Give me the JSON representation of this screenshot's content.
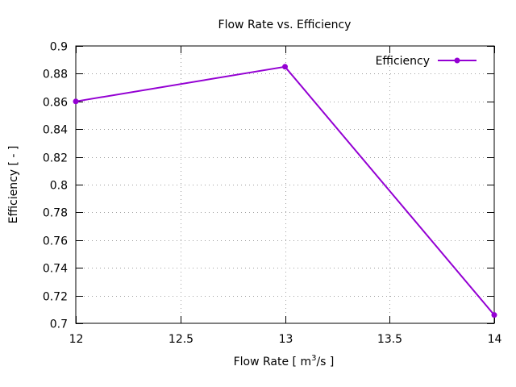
{
  "chart_data": {
    "type": "line",
    "title": "Flow Rate  vs. Efficiency",
    "xlabel_main": "Flow Rate [ m",
    "xlabel_sup": "3",
    "xlabel_tail": "/s ]",
    "ylabel": "Efficiency [ - ]",
    "xlim": [
      12,
      14
    ],
    "ylim": [
      0.7,
      0.9
    ],
    "xticks": [
      12,
      12.5,
      13,
      13.5,
      14
    ],
    "xtick_labels": [
      "12",
      "12.5",
      "13",
      "13.5",
      "14"
    ],
    "yticks": [
      0.7,
      0.72,
      0.74,
      0.76,
      0.78,
      0.8,
      0.82,
      0.84,
      0.86,
      0.88,
      0.9
    ],
    "ytick_labels": [
      "0.7",
      "0.72",
      "0.74",
      "0.76",
      "0.78",
      "0.8",
      "0.82",
      "0.84",
      "0.86",
      "0.88",
      "0.9"
    ],
    "grid": true,
    "legend_position": "top-right",
    "series": [
      {
        "name": "Efficiency",
        "color": "#9400d3",
        "x": [
          12,
          13,
          14
        ],
        "y": [
          0.86,
          0.885,
          0.706
        ]
      }
    ]
  }
}
